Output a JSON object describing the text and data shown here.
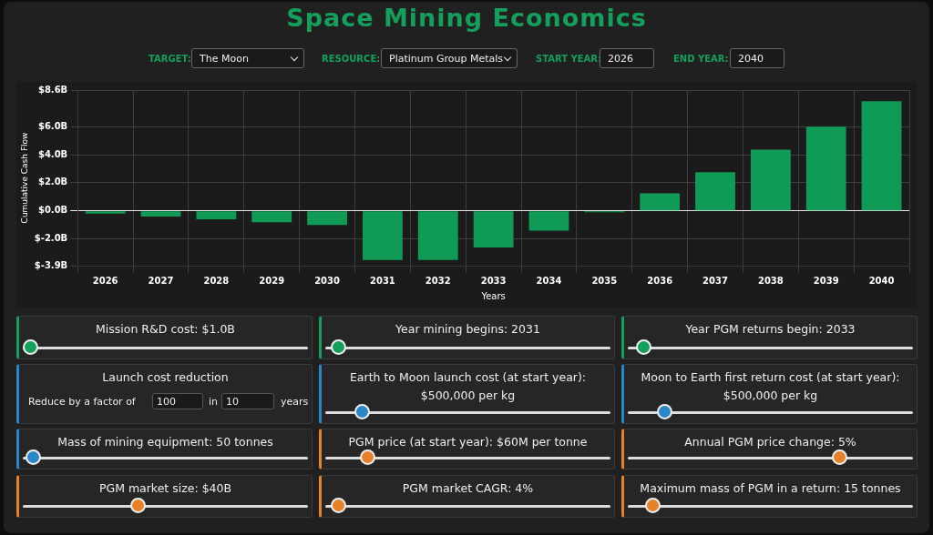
{
  "chart_data": {
    "type": "bar",
    "title": "Space Mining Economics",
    "categories": [
      "2026",
      "2027",
      "2028",
      "2029",
      "2030",
      "2031",
      "2032",
      "2033",
      "2034",
      "2035",
      "2036",
      "2037",
      "2038",
      "2039",
      "2040"
    ],
    "values": [
      -0.2,
      -0.4,
      -0.6,
      -0.8,
      -1.0,
      -3.5,
      -3.5,
      -2.6,
      -1.4,
      -0.1,
      1.25,
      2.75,
      4.35,
      6.0,
      7.8
    ],
    "color": "#0f9a56",
    "xlabel": "Years",
    "ylabel": "Cumulative Cash Flow",
    "ylim": [
      -3.9,
      8.6
    ],
    "yticks": [
      {
        "value": -3.9,
        "label": "$-3.9B"
      },
      {
        "value": -2,
        "label": "$-2.0B"
      },
      {
        "value": 0,
        "label": "$0.0B"
      },
      {
        "value": 2,
        "label": "$2.0B"
      },
      {
        "value": 4,
        "label": "$4.0B"
      },
      {
        "value": 6,
        "label": "$6.0B"
      },
      {
        "value": 8.6,
        "label": "$8.6B"
      }
    ],
    "grid": true,
    "annotations": [
      "TARGET:",
      "The Moon",
      "RESOURCE:",
      "Platinum Group Metals",
      "START YEAR:",
      "2026",
      "END YEAR:",
      "2040",
      "Mission R&D cost: $1.0B",
      "Year mining begins: 2031",
      "Year PGM returns begin: 2033",
      "Launch cost reduction",
      "Reduce by a factor of",
      "100",
      "in",
      "10",
      "years",
      "Earth to Moon launch cost (at start year): $500,000 per kg",
      "Moon to Earth first return cost (at start year): $500,000 per kg",
      "Mass of mining equipment: 50 tonnes",
      "PGM price (at start year): $60M per tonne",
      "Annual PGM price change: 5%",
      "PGM market size: $40B",
      "PGM market CAGR: 4%",
      "Maximum mass of PGM in a return: 15 tonnes"
    ]
  }
}
